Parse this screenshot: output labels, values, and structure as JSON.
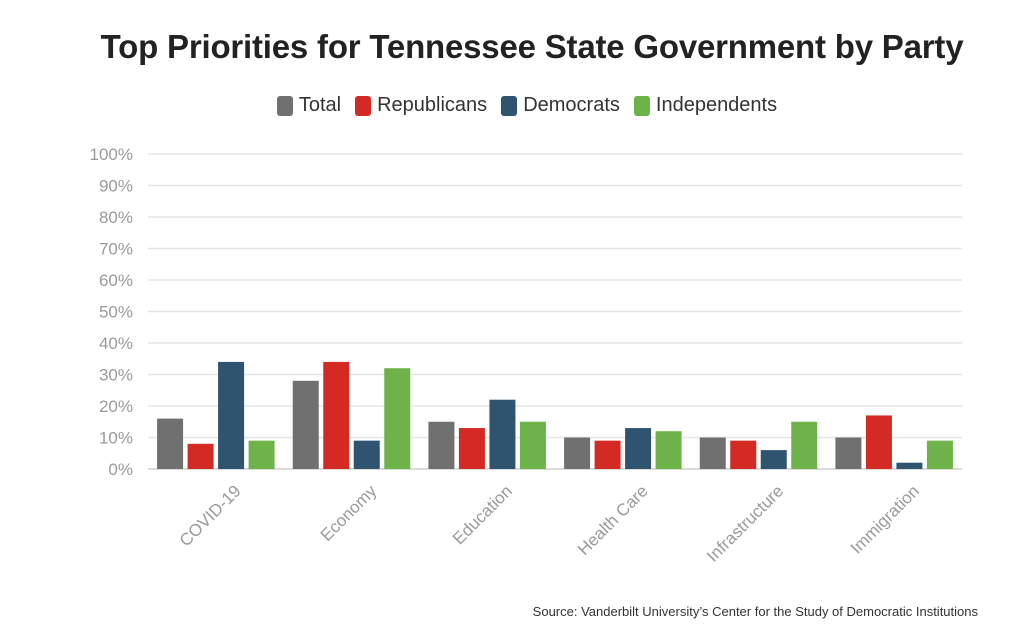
{
  "chart_data": {
    "type": "bar",
    "title": "Top Priorities for Tennessee State Government by Party",
    "categories": [
      "COVID-19",
      "Economy",
      "Education",
      "Health Care",
      "Infrastructure",
      "Immigration"
    ],
    "series": [
      {
        "name": "Total",
        "color": "#707070",
        "values": [
          16,
          28,
          15,
          10,
          10,
          10
        ]
      },
      {
        "name": "Republicans",
        "color": "#d32a23",
        "values": [
          8,
          34,
          13,
          9,
          9,
          17
        ]
      },
      {
        "name": "Democrats",
        "color": "#2e5470",
        "values": [
          34,
          9,
          22,
          13,
          6,
          2
        ]
      },
      {
        "name": "Independents",
        "color": "#6db349",
        "values": [
          9,
          32,
          15,
          12,
          15,
          9
        ]
      }
    ],
    "ylim": [
      0,
      100
    ],
    "yticks": [
      "0%",
      "10%",
      "20%",
      "30%",
      "40%",
      "50%",
      "60%",
      "70%",
      "80%",
      "90%",
      "100%"
    ],
    "grid": true,
    "legend_position": "top-center"
  },
  "source": "Source: Vanderbilt University’s Center for the Study of Democratic Institutions"
}
